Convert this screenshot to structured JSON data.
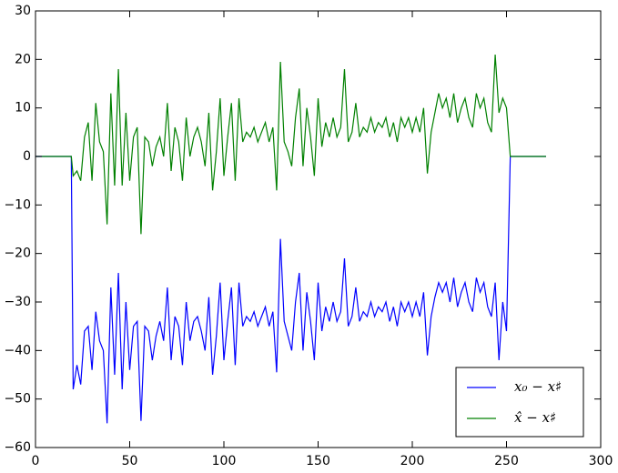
{
  "chart_data": {
    "type": "line",
    "x": [
      0,
      19,
      20,
      22,
      24,
      26,
      28,
      30,
      32,
      34,
      36,
      38,
      40,
      42,
      44,
      46,
      48,
      50,
      52,
      54,
      56,
      58,
      60,
      62,
      64,
      66,
      68,
      70,
      72,
      74,
      76,
      78,
      80,
      82,
      84,
      86,
      88,
      90,
      92,
      94,
      96,
      98,
      100,
      102,
      104,
      106,
      108,
      110,
      112,
      114,
      116,
      118,
      120,
      122,
      124,
      126,
      128,
      130,
      132,
      134,
      136,
      138,
      140,
      142,
      144,
      146,
      148,
      150,
      152,
      154,
      156,
      158,
      160,
      162,
      164,
      166,
      168,
      170,
      172,
      174,
      176,
      178,
      180,
      182,
      184,
      186,
      188,
      190,
      192,
      194,
      196,
      198,
      200,
      202,
      204,
      206,
      208,
      210,
      212,
      214,
      216,
      218,
      220,
      222,
      224,
      226,
      228,
      230,
      232,
      234,
      236,
      238,
      240,
      242,
      244,
      246,
      248,
      250,
      252,
      271
    ],
    "series": [
      {
        "name": "x₀ − x♯",
        "color": "#0000ff",
        "values": [
          0,
          0,
          -48,
          -43,
          -47,
          -36,
          -35,
          -44,
          -32,
          -38,
          -40,
          -55,
          -27,
          -45,
          -24,
          -48,
          -30,
          -44,
          -35,
          -34,
          -54.5,
          -35,
          -36,
          -42,
          -37,
          -34,
          -38,
          -27,
          -42,
          -33,
          -35,
          -43,
          -30,
          -38,
          -34,
          -33,
          -36,
          -40,
          -29,
          -45,
          -37,
          -26,
          -42,
          -34,
          -27,
          -43,
          -26,
          -35,
          -33,
          -34,
          -32,
          -35,
          -33,
          -31,
          -35,
          -32,
          -44.5,
          -17,
          -34,
          -37,
          -40,
          -30,
          -24,
          -40,
          -28,
          -34,
          -42,
          -26,
          -36,
          -31,
          -34,
          -30,
          -34,
          -32,
          -21,
          -35,
          -33,
          -27,
          -34,
          -32,
          -33,
          -30,
          -33,
          -31,
          -32,
          -30,
          -34,
          -31,
          -35,
          -30,
          -32,
          -30,
          -33,
          -30,
          -33,
          -28,
          -41,
          -33,
          -29,
          -26,
          -28,
          -26,
          -30,
          -25,
          -31,
          -28,
          -26,
          -30,
          -32,
          -25,
          -28,
          -26,
          -31,
          -33,
          -26,
          -42,
          -30,
          -36,
          0,
          0
        ]
      },
      {
        "name": "x̂ − x♯",
        "color": "#008000",
        "values": [
          0,
          0,
          -4,
          -3,
          -5,
          4,
          7,
          -5,
          11,
          3,
          1,
          -14,
          13,
          -6,
          18,
          -6,
          9,
          -5,
          4,
          6,
          -16,
          4,
          3,
          -2,
          2,
          4,
          0,
          11,
          -3,
          6,
          3,
          -5,
          8,
          0,
          4,
          6,
          3,
          -2,
          9,
          -7,
          1,
          12,
          -4,
          4,
          11,
          -5,
          12,
          3,
          5,
          4,
          6,
          3,
          5,
          7,
          3,
          6,
          -7,
          19.5,
          3,
          1,
          -2,
          8,
          14,
          -2,
          10,
          4,
          -4,
          12,
          2,
          7,
          4,
          8,
          4,
          6,
          18,
          3,
          5,
          11,
          4,
          6,
          5,
          8,
          5,
          7,
          6,
          8,
          4,
          7,
          3,
          8,
          6,
          8,
          5,
          8,
          5,
          10,
          -3.5,
          5,
          9,
          13,
          10,
          12,
          8,
          13,
          7,
          10,
          12,
          8,
          6,
          13,
          10,
          12,
          7,
          5,
          21,
          9,
          12,
          10,
          0,
          0
        ]
      }
    ],
    "xlim": [
      0,
      300
    ],
    "xticks": [
      0,
      50,
      100,
      150,
      200,
      250,
      300
    ],
    "ylim": [
      -60,
      30
    ],
    "yticks": [
      {
        "value": -60,
        "label": "−60"
      },
      {
        "value": -50,
        "label": "−50"
      },
      {
        "value": -40,
        "label": "−40"
      },
      {
        "value": -30,
        "label": "−30"
      },
      {
        "value": -20,
        "label": "−20"
      },
      {
        "value": -10,
        "label": "−10"
      },
      0,
      10,
      20,
      30
    ],
    "legend": "lower right"
  }
}
